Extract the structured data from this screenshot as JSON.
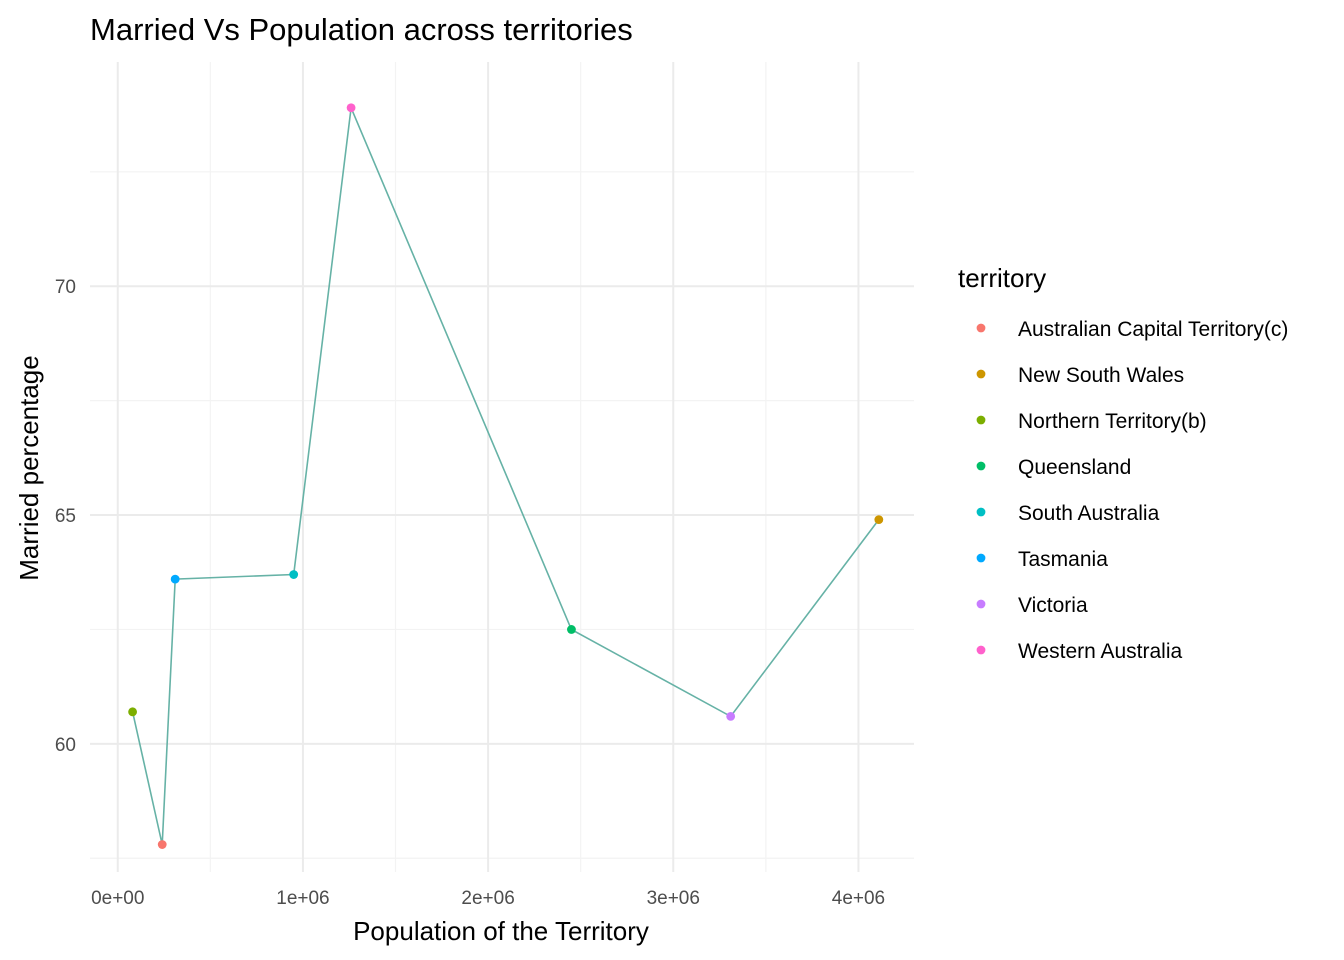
{
  "chart_data": {
    "type": "line",
    "title": "Married Vs Population across territories",
    "xlabel": "Population of the Territory",
    "ylabel": "Married percentage",
    "xlim": [
      -150000,
      4300000
    ],
    "ylim": [
      57.2,
      74.9
    ],
    "x_ticks": [
      0,
      1000000,
      2000000,
      3000000,
      4000000
    ],
    "x_tick_labels": [
      "0e+00",
      "1e+06",
      "2e+06",
      "3e+06",
      "4e+06"
    ],
    "x_minor": [
      500000,
      1500000,
      2500000,
      3500000
    ],
    "y_ticks": [
      60,
      65,
      70
    ],
    "y_tick_labels": [
      "60",
      "65",
      "70"
    ],
    "y_minor": [
      57.5,
      62.5,
      67.5,
      72.5
    ],
    "grid": true,
    "line_color": "#66B2A6",
    "legend": {
      "title": "territory",
      "placement": "right"
    },
    "series": [
      {
        "name": "Northern Territory(b)",
        "color": "#7CAE00",
        "x": 80000,
        "y": 60.7
      },
      {
        "name": "Australian Capital Territory(c)",
        "color": "#F8766D",
        "x": 240000,
        "y": 57.8
      },
      {
        "name": "Tasmania",
        "color": "#00A9FF",
        "x": 310000,
        "y": 63.6
      },
      {
        "name": "South Australia",
        "color": "#00BFC4",
        "x": 950000,
        "y": 63.7
      },
      {
        "name": "Western Australia",
        "color": "#FF61CC",
        "x": 1260000,
        "y": 73.9
      },
      {
        "name": "Queensland",
        "color": "#00BE67",
        "x": 2450000,
        "y": 62.5
      },
      {
        "name": "Victoria",
        "color": "#C77CFF",
        "x": 3310000,
        "y": 60.6
      },
      {
        "name": "New South Wales",
        "color": "#CD9600",
        "x": 4110000,
        "y": 64.9
      }
    ],
    "legend_order": [
      "Australian Capital Territory(c)",
      "New South Wales",
      "Northern Territory(b)",
      "Queensland",
      "South Australia",
      "Tasmania",
      "Victoria",
      "Western Australia"
    ]
  }
}
